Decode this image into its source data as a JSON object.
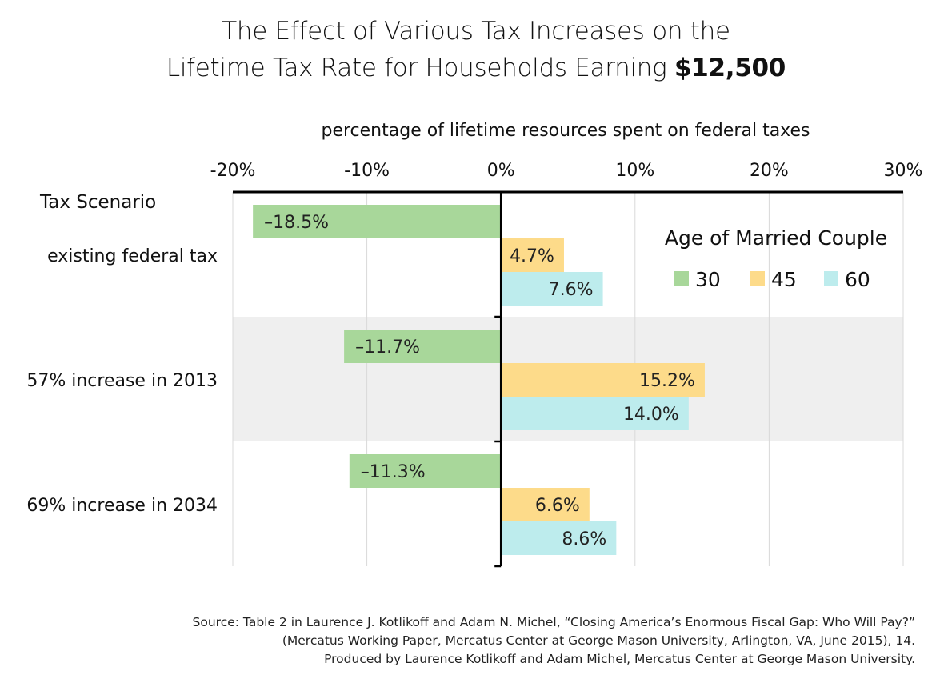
{
  "title": {
    "line1": "The Effect of Various Tax Increases on the",
    "line2_prefix": "Lifetime Tax Rate for Households Earning ",
    "line2_bold": "$12,500"
  },
  "chart_data": {
    "type": "bar",
    "orientation": "horizontal",
    "xlabel": "percentage of lifetime resources spent on federal taxes",
    "ylabel": "Tax Scenario",
    "xlim": [
      -20,
      30
    ],
    "xticks": [
      -20,
      -10,
      0,
      10,
      20,
      30
    ],
    "xtick_labels": [
      "-20%",
      "-10%",
      "0%",
      "10%",
      "20%",
      "30%"
    ],
    "grid": true,
    "categories": [
      "existing federal tax",
      "57% increase in 2013",
      "69% increase in 2034"
    ],
    "legend": {
      "title": "Age of Married Couple",
      "placement": "top-right"
    },
    "series": [
      {
        "name": "30",
        "color": "#a8d79a",
        "values": [
          -18.5,
          -11.7,
          -11.3
        ],
        "labels": [
          "–18.5%",
          "–11.7%",
          "–11.3%"
        ]
      },
      {
        "name": "45",
        "color": "#fddb8a",
        "values": [
          4.7,
          15.2,
          6.6
        ],
        "labels": [
          "4.7%",
          "15.2%",
          "6.6%"
        ]
      },
      {
        "name": "60",
        "color": "#bdeced",
        "values": [
          7.6,
          14.0,
          8.6
        ],
        "labels": [
          "7.6%",
          "14.0%",
          "8.6%"
        ]
      }
    ]
  },
  "source": {
    "line1": "Source: Table 2 in Laurence J. Kotlikoff and Adam N. Michel, “Closing America’s Enormous Fiscal Gap: Who Will Pay?”",
    "line2": "(Mercatus Working Paper, Mercatus Center at George Mason University, Arlington, VA, June 2015), 14.",
    "line3": "Produced by Laurence Kotlikoff and Adam Michel, Mercatus Center at George Mason University."
  }
}
